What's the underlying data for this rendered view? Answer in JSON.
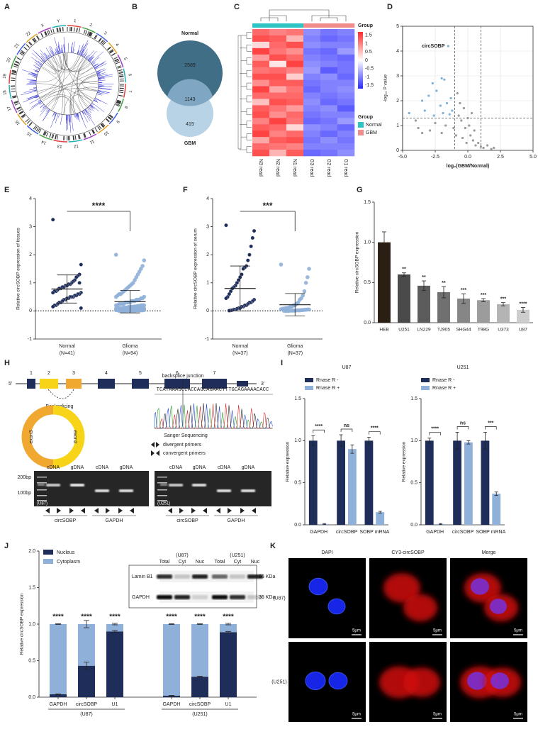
{
  "panel_labels": [
    "A",
    "B",
    "C",
    "D",
    "E",
    "F",
    "G",
    "H",
    "I",
    "J",
    "K"
  ],
  "circos": {
    "labels": [
      "1",
      "2",
      "3",
      "4",
      "5",
      "6",
      "7",
      "8",
      "9",
      "10",
      "11",
      "12",
      "13",
      "14",
      "15",
      "16",
      "17",
      "18",
      "19",
      "20",
      "21",
      "22",
      "X",
      "Y"
    ]
  },
  "chart_data": [
    {
      "type": "venn",
      "series": [
        {
          "name": "Normal",
          "color": "#3f6e86"
        },
        {
          "name": "GBM",
          "color": "#b8d3e6"
        }
      ],
      "overlap_color": "#7fa6c2",
      "values": [
        2589,
        1143,
        415
      ]
    },
    {
      "type": "heatmap",
      "columns": [
        "N3 read",
        "N2 read",
        "N1 read",
        "G3 read",
        "G2 read",
        "G1 read"
      ],
      "column_groups": [
        "Normal",
        "Normal",
        "Normal",
        "GBM",
        "GBM",
        "GBM"
      ],
      "annotation_label": "Group",
      "legend_title": "Group",
      "groups": [
        {
          "name": "Normal",
          "color": "#2ec4c4"
        },
        {
          "name": "GBM",
          "color": "#f08c8c"
        }
      ],
      "zlim": [
        -1.7,
        1.7
      ],
      "zticks": [
        1.5,
        1,
        0.5,
        0,
        -0.5,
        -1,
        -1.5
      ],
      "colorscale": [
        "#2a2aff",
        "#ffffff",
        "#ff2a2a"
      ],
      "values": [
        [
          1.2,
          1.0,
          1.1,
          -0.9,
          -1.1,
          -1.0
        ],
        [
          1.4,
          1.3,
          0.6,
          -1.0,
          -1.2,
          -1.1
        ],
        [
          0.3,
          1.2,
          1.4,
          -0.9,
          -1.0,
          -1.0
        ],
        [
          1.5,
          1.1,
          0.9,
          -1.1,
          -1.2,
          -0.8
        ],
        [
          0.8,
          1.4,
          1.2,
          -1.0,
          -1.1,
          -1.2
        ],
        [
          1.3,
          0.2,
          1.5,
          -0.9,
          -1.0,
          -1.1
        ],
        [
          1.1,
          1.2,
          1.0,
          -0.8,
          -1.3,
          -1.1
        ],
        [
          1.4,
          1.4,
          0.4,
          -1.0,
          -0.9,
          -1.2
        ],
        [
          0.9,
          1.3,
          1.3,
          -1.1,
          -1.0,
          -1.0
        ],
        [
          1.5,
          0.7,
          1.1,
          -1.2,
          -1.0,
          -0.9
        ],
        [
          1.2,
          1.2,
          1.2,
          -1.0,
          -1.1,
          -1.0
        ],
        [
          0.5,
          1.4,
          1.3,
          -0.9,
          -1.2,
          -1.1
        ],
        [
          1.3,
          1.1,
          0.8,
          -1.0,
          -0.9,
          -1.3
        ],
        [
          1.4,
          0.9,
          1.2,
          -1.1,
          -1.0,
          -1.0
        ],
        [
          1.0,
          1.5,
          1.1,
          -1.2,
          -1.1,
          -0.8
        ],
        [
          1.3,
          1.2,
          0.3,
          -0.9,
          -1.0,
          -1.2
        ],
        [
          1.5,
          1.0,
          1.2,
          -1.0,
          -1.2,
          -1.0
        ],
        [
          0.7,
          1.3,
          1.4,
          -1.1,
          -0.9,
          -1.1
        ],
        [
          1.2,
          1.1,
          1.0,
          -1.0,
          -1.0,
          -1.0
        ],
        [
          1.4,
          0.6,
          1.3,
          -1.2,
          -1.1,
          -0.9
        ]
      ]
    },
    {
      "type": "scatter",
      "xlabel": "log₂(GBM/Normal)",
      "ylabel": "-log₁₀ P value",
      "xlim": [
        -5,
        5
      ],
      "ylim": [
        0,
        5
      ],
      "xticks": [
        {
          "value": -5,
          "label": "-5.0"
        },
        {
          "value": -2.5,
          "label": "-2.5"
        },
        {
          "value": 0,
          "label": "0.0"
        },
        {
          "value": 2.5,
          "label": "2.5"
        },
        {
          "value": 5,
          "label": "5.0"
        }
      ],
      "yticks": [
        0,
        1,
        2,
        3,
        4,
        5
      ],
      "grid": true,
      "thresholds": {
        "x": [
          -1,
          1
        ],
        "y": 1.3
      },
      "color": "#9a9a9a",
      "highlight_color": "#7fb0d6",
      "x": [
        -1.5,
        -2.0,
        -1.8,
        -2.7,
        -3.0,
        -3.5,
        -2.4,
        -1.3,
        -1.6,
        -2.1,
        -1.2,
        -1.9,
        -2.6,
        -1.4,
        -3.3,
        -4.0,
        -3.8,
        -2.9,
        -2.5,
        -2.0,
        -1.7,
        -0.8,
        -0.6,
        -0.3,
        -0.5,
        -0.2,
        0.1,
        -0.9,
        -0.4,
        0.2,
        0.4,
        0.5,
        -0.1,
        0.6,
        0.8,
        1.0,
        1.2,
        1.5,
        1.8,
        2.0,
        -1.1,
        -0.7,
        0.0,
        0.3,
        -3.5,
        -4.5
      ],
      "values": [
        4.2,
        2.9,
        2.85,
        2.7,
        2.2,
        2.0,
        2.4,
        2.1,
        1.9,
        1.8,
        1.6,
        1.5,
        1.4,
        1.45,
        1.6,
        1.2,
        0.9,
        0.8,
        1.1,
        0.7,
        1.0,
        2.3,
        1.9,
        1.7,
        1.2,
        0.9,
        1.0,
        0.6,
        0.5,
        0.6,
        0.4,
        0.8,
        0.3,
        0.2,
        0.3,
        0.15,
        0.1,
        0.2,
        0.05,
        0.1,
        0.9,
        1.4,
        1.3,
        1.5,
        0.7,
        1.5
      ],
      "point_labels": [
        "circSOBP",
        null,
        null,
        null,
        null,
        null,
        null,
        null,
        null,
        null,
        null,
        null,
        null,
        null,
        null,
        null,
        null,
        null,
        null,
        null,
        null,
        null,
        null,
        null,
        null,
        null,
        null,
        null,
        null,
        null,
        null,
        null,
        null,
        null,
        null,
        null,
        null,
        null,
        null,
        null,
        null,
        null,
        null,
        null,
        null,
        null
      ]
    },
    {
      "type": "dot",
      "ylabel": "Relative circSOBP expression of tissues",
      "ylim": [
        -1,
        4
      ],
      "yticks": [
        -1,
        0,
        1,
        2,
        3,
        4
      ],
      "sig": "****",
      "series": [
        {
          "name": "Normal",
          "sublabel": "(N=41)",
          "color": "#1f2d5a",
          "mean": 0.78,
          "sd": 0.5,
          "values": [
            3.25,
            1.65,
            1.3,
            1.25,
            1.2,
            1.1,
            1.05,
            1.0,
            0.95,
            0.95,
            0.9,
            0.9,
            0.85,
            0.85,
            0.8,
            0.8,
            0.75,
            0.7,
            0.7,
            0.65,
            0.65,
            0.6,
            0.6,
            0.55,
            0.55,
            0.5,
            0.5,
            0.5,
            0.45,
            0.45,
            0.4,
            0.4,
            0.35,
            0.3,
            0.3,
            0.25,
            0.2,
            0.2,
            0.15,
            0.1,
            1.0
          ]
        },
        {
          "name": "Glioma",
          "sublabel": "(N=94)",
          "color": "#8fb0d8",
          "mean": 0.33,
          "sd": 0.4,
          "values": [
            2.0,
            1.8,
            1.6,
            1.5,
            1.4,
            1.3,
            1.2,
            1.1,
            1.0,
            0.95,
            0.9,
            0.85,
            0.8,
            0.75,
            0.7,
            0.65,
            0.6,
            0.6,
            0.55,
            0.5,
            0.5,
            0.45,
            0.45,
            0.4,
            0.4,
            0.4,
            0.35,
            0.35,
            0.35,
            0.3,
            0.3,
            0.3,
            0.3,
            0.25,
            0.25,
            0.25,
            0.25,
            0.2,
            0.2,
            0.2,
            0.2,
            0.2,
            0.18,
            0.18,
            0.16,
            0.16,
            0.15,
            0.15,
            0.14,
            0.14,
            0.12,
            0.12,
            0.12,
            0.1,
            0.1,
            0.1,
            0.1,
            0.09,
            0.09,
            0.08,
            0.08,
            0.08,
            0.07,
            0.07,
            0.06,
            0.06,
            0.06,
            0.05,
            0.05,
            0.05,
            0.05,
            0.04,
            0.04,
            0.04,
            0.03,
            0.03,
            0.03,
            0.03,
            0.02,
            0.02,
            0.02,
            0.02,
            0.02,
            0.01,
            0.01,
            0.01,
            0.01,
            0.01,
            0.01,
            0,
            0,
            0,
            0,
            0
          ]
        }
      ]
    },
    {
      "type": "dot",
      "ylabel": "Relative circSOBP expression of serum",
      "ylim": [
        -1,
        4
      ],
      "yticks": [
        -1,
        0,
        1,
        2,
        3,
        4
      ],
      "sig": "***",
      "series": [
        {
          "name": "Normal",
          "sublabel": "(N=37)",
          "color": "#1f2d5a",
          "mean": 0.8,
          "sd": 0.8,
          "values": [
            3.05,
            2.85,
            2.6,
            2.3,
            2.0,
            1.8,
            1.6,
            1.55,
            1.5,
            1.3,
            1.2,
            1.1,
            1.0,
            0.9,
            0.85,
            0.8,
            0.7,
            0.6,
            0.5,
            0.45,
            0.4,
            0.35,
            0.3,
            0.3,
            0.25,
            0.2,
            0.2,
            0.15,
            0.15,
            0.1,
            0.1,
            0.08,
            0.05,
            0.05,
            0.03,
            0.02,
            0.01
          ]
        },
        {
          "name": "Glioma",
          "sublabel": "(N=37)",
          "color": "#8fb0d8",
          "mean": 0.22,
          "sd": 0.4,
          "values": [
            1.65,
            1.5,
            1.2,
            1.0,
            0.7,
            0.55,
            0.45,
            0.4,
            0.3,
            0.25,
            0.2,
            0.2,
            0.15,
            0.15,
            0.12,
            0.1,
            0.1,
            0.08,
            0.08,
            0.06,
            0.05,
            0.05,
            0.04,
            0.04,
            0.03,
            0.03,
            0.02,
            0.02,
            0.02,
            0.01,
            0.01,
            0.01,
            0.01,
            0,
            0,
            0,
            0
          ]
        }
      ]
    },
    {
      "type": "bar",
      "ylabel": "Relative circSOBP expression",
      "ylim": [
        0,
        1.5
      ],
      "yticks": [
        {
          "value": 0,
          "label": "0.0"
        },
        0.5,
        {
          "value": 1,
          "label": "1.0"
        },
        1.5
      ],
      "categories": [
        "HEB",
        "U251",
        "LN229",
        "TJ905",
        "SHG44",
        "T98G",
        "U373",
        "U87"
      ],
      "values": [
        1.0,
        0.6,
        0.46,
        0.38,
        0.3,
        0.28,
        0.23,
        0.16
      ],
      "errors": [
        0.13,
        0.02,
        0.06,
        0.07,
        0.06,
        0.02,
        0.02,
        0.03
      ],
      "colors": [
        "#2b1f14",
        "#4a4a4a",
        "#5c5c5c",
        "#707070",
        "#868686",
        "#9c9c9c",
        "#b4b4b4",
        "#cdcdcd"
      ],
      "sig_labels": [
        null,
        "**",
        "**",
        "**",
        "***",
        "***",
        "***",
        "****"
      ]
    },
    {
      "type": "grouped_bar",
      "title": "U87",
      "ylabel": "Relative expression",
      "ylim": [
        0,
        1.5
      ],
      "yticks": [
        {
          "value": 0,
          "label": "0.0"
        },
        0.5,
        {
          "value": 1,
          "label": "1.0"
        },
        1.5
      ],
      "categories": [
        "GAPDH",
        "circSOBP",
        "SOBP mRNA"
      ],
      "sig_labels": [
        "****",
        "ns",
        "****"
      ],
      "series": [
        {
          "name": "Rnase R -",
          "color": "#1f2d5a",
          "values": [
            1.0,
            1.0,
            1.0
          ],
          "errors": [
            0.06,
            0.07,
            0.04
          ]
        },
        {
          "name": "Rnase R +",
          "color": "#8fb0d8",
          "values": [
            0.01,
            0.9,
            0.15
          ],
          "errors": [
            0.005,
            0.05,
            0.01
          ]
        }
      ]
    },
    {
      "type": "grouped_bar",
      "title": "U251",
      "ylabel": "Relative expression",
      "ylim": [
        0,
        1.5
      ],
      "yticks": [
        {
          "value": 0,
          "label": "0.0"
        },
        0.5,
        {
          "value": 1,
          "label": "1.0"
        },
        1.5
      ],
      "categories": [
        "GAPDH",
        "circSOBP",
        "SOBP mRNA"
      ],
      "sig_labels": [
        "****",
        "ns",
        "***"
      ],
      "series": [
        {
          "name": "Rnase R -",
          "color": "#1f2d5a",
          "values": [
            1.0,
            1.0,
            1.0
          ],
          "errors": [
            0.03,
            0.1,
            0.1
          ]
        },
        {
          "name": "Rnase R +",
          "color": "#8fb0d8",
          "values": [
            0.01,
            0.98,
            0.37
          ],
          "errors": [
            0.005,
            0.02,
            0.02
          ]
        }
      ]
    },
    {
      "type": "stacked_bar",
      "ylabel": "Relative circSOBP expression",
      "ylim": [
        0,
        2
      ],
      "yticks": [
        {
          "value": 0,
          "label": "0.0"
        },
        0.5,
        {
          "value": 1,
          "label": "1.0"
        },
        1.5,
        {
          "value": 2,
          "label": "2.0"
        }
      ],
      "categories": [
        "GAPDH",
        "circSOBP",
        "U1",
        "GAPDH",
        "circSOBP",
        "U1"
      ],
      "groups": [
        "(U87)",
        "(U251)"
      ],
      "sig_labels": [
        "****",
        "****",
        "****",
        "****",
        "****",
        "****"
      ],
      "series": [
        {
          "name": "Nucleus",
          "color": "#1f2d5a",
          "values": [
            0.04,
            0.43,
            0.9,
            0.02,
            0.28,
            0.89
          ],
          "errors": [
            0.005,
            0.05,
            0.01,
            0.005,
            0.005,
            0.01
          ]
        },
        {
          "name": "Cytoplasm",
          "color": "#8fb0d8",
          "values": [
            0.96,
            0.57,
            0.1,
            0.98,
            0.72,
            0.11
          ],
          "errors": [
            0.005,
            0.05,
            0.01,
            0.005,
            0.005,
            0.01
          ]
        }
      ],
      "blot": {
        "cells": [
          "(U87)",
          "(U251)"
        ],
        "lanes": [
          "Total",
          "Cyt",
          "Nuc",
          "Total",
          "Cyt",
          "Nuc"
        ],
        "proteins": [
          "Lamin B1",
          "GAPDH"
        ],
        "sizes": [
          "66 KDa",
          "36 KDa"
        ]
      }
    }
  ],
  "gene": {
    "exons": [
      "1",
      "2",
      "3",
      "4",
      "5",
      "6",
      "7"
    ],
    "five": "5'",
    "three": "3'",
    "backsplicing": "Backsplicing",
    "circle": [
      "exon3",
      "exon2"
    ],
    "junction": "backsplice junction",
    "sequence": "TCATAAAGCCACCAGCAGAACTTTGCAGAAAACACC",
    "sanger": "Sanger Sequencing",
    "primers": [
      "divergent primers",
      "convergent primers"
    ]
  },
  "gel": {
    "ladder": [
      "200bp",
      "100bp"
    ],
    "lanes": [
      "cDNA",
      "gDNA",
      "cDNA",
      "gDNA",
      "cDNA",
      "gDNA",
      "cDNA",
      "gDNA"
    ],
    "cells": [
      "(U87)",
      "(U251)"
    ],
    "genes": [
      "circSOBP",
      "GAPDH",
      "circSOBP",
      "GAPDH"
    ]
  },
  "microscopy": {
    "columns": [
      "DAPI",
      "CY3-circSOBP",
      "Merge"
    ],
    "rows": [
      "(U87)",
      "(U251)"
    ],
    "scale": "5μm"
  }
}
